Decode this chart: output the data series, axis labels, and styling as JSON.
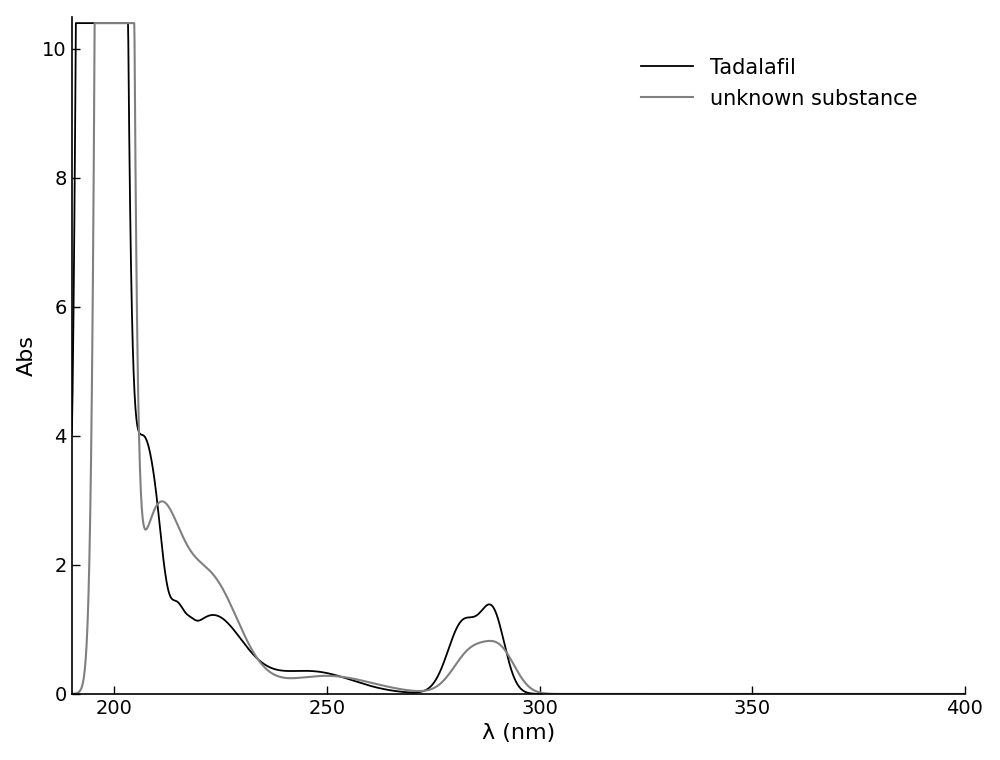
{
  "xlabel": "λ (nm)",
  "ylabel": "Abs",
  "xlim": [
    190,
    400
  ],
  "ylim": [
    0,
    10.5
  ],
  "xticks": [
    200,
    250,
    300,
    350,
    400
  ],
  "yticks": [
    0,
    2,
    4,
    6,
    8,
    10
  ],
  "legend_labels": [
    "Tadalafil",
    "unknown substance"
  ],
  "line1_color": "#000000",
  "line2_color": "#808080",
  "background_color": "#ffffff",
  "figsize": [
    10.0,
    7.6
  ],
  "dpi": 100
}
